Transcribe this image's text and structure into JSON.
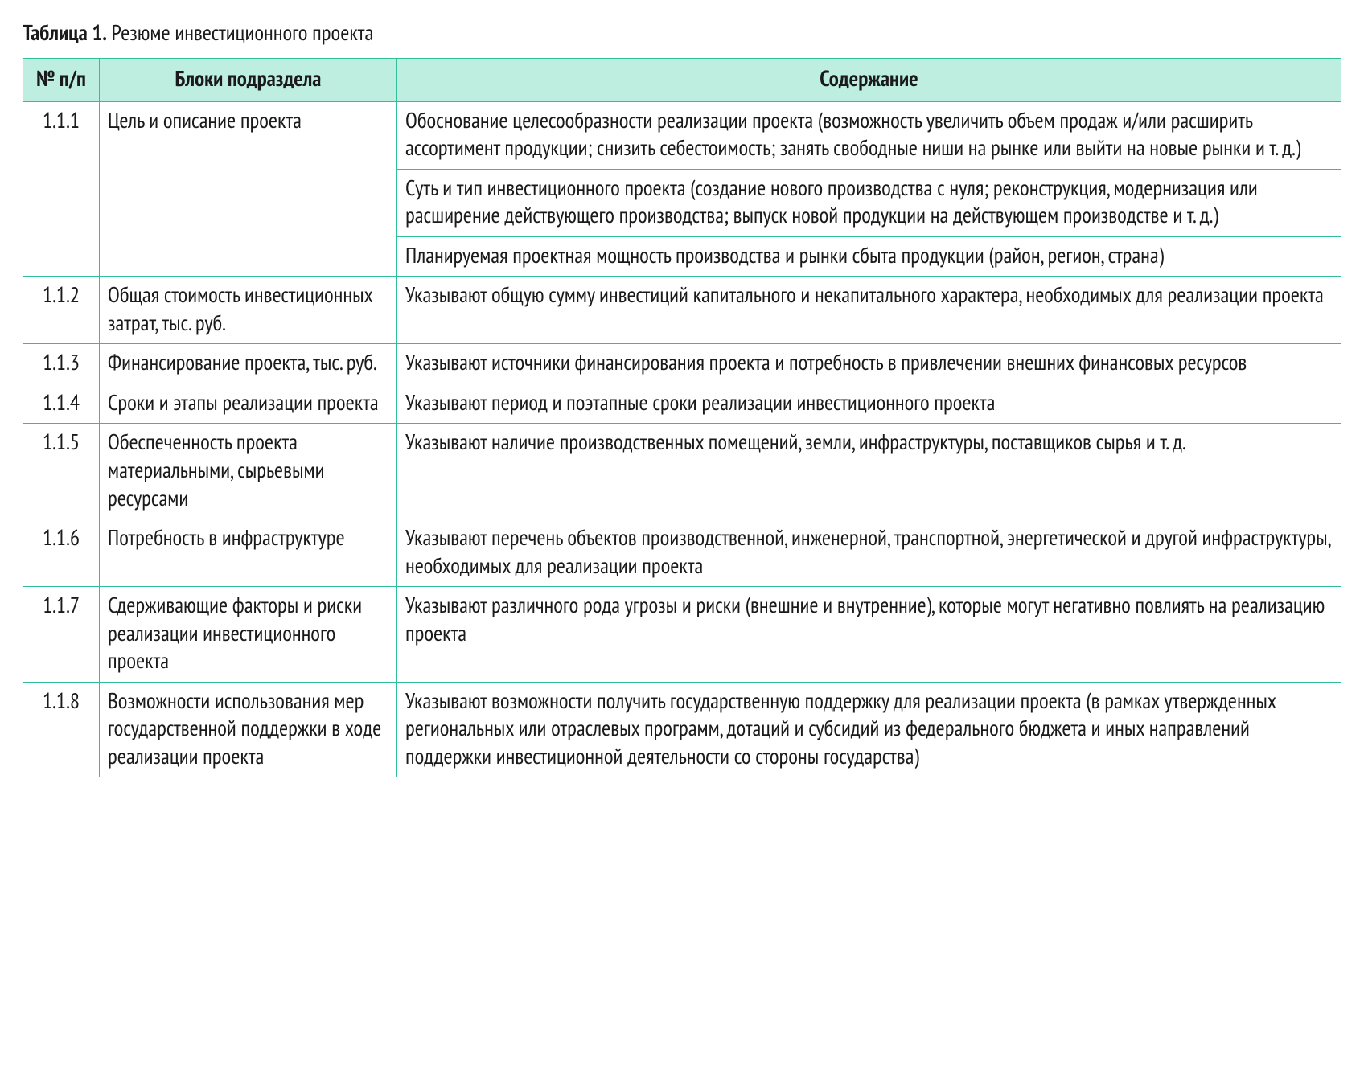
{
  "caption_bold": "Таблица 1.",
  "caption_rest": " Резюме инвестиционного проекта",
  "columns": {
    "num": "№ п/п",
    "block": "Блоки подраздела",
    "content": "Содержание"
  },
  "colors": {
    "border": "#2fbf9a",
    "header_bg": "#bdeee0",
    "text": "#1a1a1a",
    "page_bg": "#ffffff"
  },
  "rows": [
    {
      "num": "1.1.1",
      "block": "Цель и описание проекта",
      "contents": [
        "Обоснование целесообразности реализации проекта (возможность увеличить объем продаж и/или расширить ассортимент продукции; снизить себестоимость; занять свободные ниши на рынке или выйти на новые рынки и т. д.)",
        "Суть и тип инвестиционного проекта (создание нового производства с нуля; реконструкция, модернизация или расширение действующего производства; выпуск новой продукции на действующем производстве и т. д.)",
        "Планируемая проектная мощность производства и рынки сбыта продукции (район, регион, страна)"
      ]
    },
    {
      "num": "1.1.2",
      "block": "Общая стоимость инвестиционных затрат, тыс. руб.",
      "contents": [
        "Указывают общую сумму инвестиций капитального и некапитального характера, необходимых для реализации проекта"
      ]
    },
    {
      "num": "1.1.3",
      "block": "Финансирование проекта, тыс. руб.",
      "contents": [
        "Указывают источники финансирования проекта и потребность в привлечении внешних финансовых ресурсов"
      ]
    },
    {
      "num": "1.1.4",
      "block": "Сроки и этапы реализации проекта",
      "contents": [
        "Указывают период и поэтапные сроки реализации инвестиционного проекта"
      ]
    },
    {
      "num": "1.1.5",
      "block": "Обеспеченность проекта материальными, сырьевыми ресурсами",
      "contents": [
        "Указывают наличие производственных помещений, земли, инфраструктуры, поставщиков сырья и т. д."
      ]
    },
    {
      "num": "1.1.6",
      "block": "Потребность в инфраструктуре",
      "contents": [
        "Указывают перечень объектов производственной, инженерной, транспортной, энергетической и другой инфраструктуры, необходимых для реализации проекта"
      ]
    },
    {
      "num": "1.1.7",
      "block": "Сдерживающие факторы и риски реализации инвестиционного проекта",
      "contents": [
        "Указывают различного рода угрозы и риски (внешние и внутренние), которые могут негативно повлиять на реализацию проекта"
      ]
    },
    {
      "num": "1.1.8",
      "block": "Возможности использования мер государственной поддержки в ходе реализации проекта",
      "contents": [
        "Указывают возможности получить государственную поддержку для реализации проекта (в рамках утвержденных региональных или отраслевых программ, дотаций и субсидий из федерального бюджета и иных направлений поддержки инвестиционной деятельности со стороны государства)"
      ]
    }
  ]
}
